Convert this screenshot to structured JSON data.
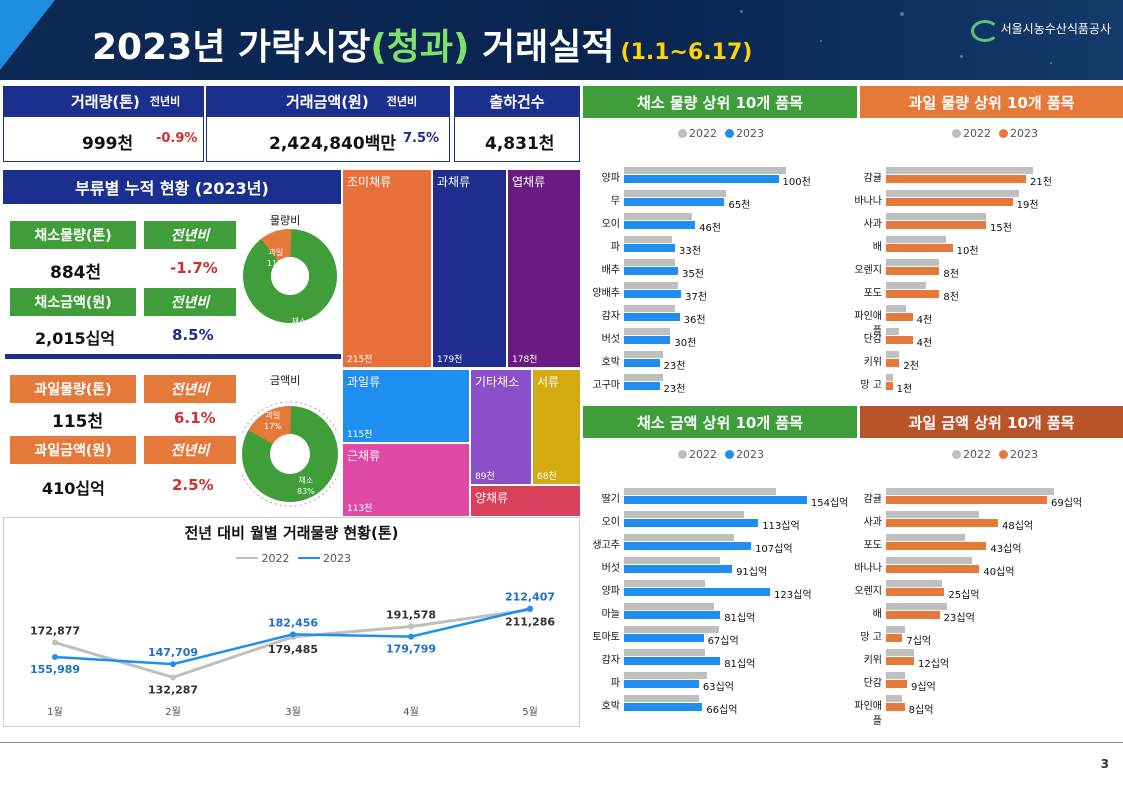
{
  "header": {
    "title_pre": "2023년 가락시장",
    "title_green": "(청과)",
    "title_post": " 거래실적",
    "period": "(1.1~6.17)",
    "org": "서울시농수산식품공사"
  },
  "kpi": {
    "volume_label": "거래량(톤)",
    "yoy_label": "전년비",
    "volume_value": "999천",
    "volume_yoy": "-0.9%",
    "amount_label": "거래금액(원)",
    "amount_value": "2,424,840백만",
    "amount_yoy": "7.5%",
    "shipments_label": "출하건수",
    "shipments_value": "4,831천"
  },
  "category": {
    "title": "부류별 누적 현황 (2023년)",
    "veg_volume_label": "채소물량(톤)",
    "veg_volume": "884천",
    "veg_volume_yoy": "-1.7%",
    "veg_amount_label": "채소금액(원)",
    "veg_amount": "2,015십억",
    "veg_amount_yoy": "8.5%",
    "fruit_volume_label": "과일물량(톤)",
    "fruit_volume": "115천",
    "fruit_volume_yoy": "6.1%",
    "fruit_amount_label": "과일금액(원)",
    "fruit_amount": "410십억",
    "fruit_amount_yoy": "2.5%",
    "yoy_label": "전년비",
    "donut1_title": "물량비",
    "donut2_title": "금액비",
    "fruit": "과일",
    "veg": "채소",
    "donut1_fruit": "11%",
    "donut1_veg": "89%",
    "donut2_fruit": "17%",
    "donut2_veg": "83%"
  },
  "treemap": [
    {
      "label": "조미채류",
      "value": "215천",
      "color": "#e8703a"
    },
    {
      "label": "과채류",
      "value": "179천",
      "color": "#1f2d8f"
    },
    {
      "label": "엽채류",
      "value": "178천",
      "color": "#6b1a82"
    },
    {
      "label": "과일류",
      "value": "115천",
      "color": "#1f8ef1"
    },
    {
      "label": "기타채소",
      "value": "89천",
      "color": "#8b4fc9"
    },
    {
      "label": "서류",
      "value": "68천",
      "color": "#d4aa11"
    },
    {
      "label": "근채류",
      "value": "113천",
      "color": "#e04aa6"
    },
    {
      "label": "양채류",
      "value": "",
      "color": "#d9415a"
    }
  ],
  "line": {
    "title": "전년 대비 월별 거래물량 현황(톤)",
    "legend_2022": "2022",
    "legend_2023": "2023"
  },
  "chart_data": [
    {
      "type": "line",
      "title": "전년 대비 월별 거래물량 현황(톤)",
      "categories": [
        "1월",
        "2월",
        "3월",
        "4월",
        "5월"
      ],
      "series": [
        {
          "name": "2022",
          "values": [
            172877,
            132287,
            179485,
            191578,
            211286
          ],
          "color": "#bfbfbf"
        },
        {
          "name": "2023",
          "values": [
            155989,
            147709,
            182456,
            179799,
            212407
          ],
          "color": "#1f8ef1"
        }
      ],
      "ylim": [
        100000,
        240000
      ]
    },
    {
      "type": "bar",
      "title": "채소 물량 상위 10개 품목",
      "categories": [
        "양파",
        "무",
        "오이",
        "파",
        "배추",
        "양배추",
        "감자",
        "버섯",
        "호박",
        "고구마"
      ],
      "series": [
        {
          "name": "2022",
          "values": [
            105,
            66,
            44,
            31,
            33,
            35,
            33,
            30,
            25,
            25
          ]
        },
        {
          "name": "2023",
          "values": [
            100,
            65,
            46,
            33,
            35,
            37,
            36,
            30,
            23,
            23
          ]
        }
      ],
      "unit": "천"
    },
    {
      "type": "bar",
      "title": "과일 물량 상위 10개 품목",
      "categories": [
        "감귤",
        "바나나",
        "사과",
        "배",
        "오렌지",
        "포도",
        "파인애플",
        "단감",
        "키위",
        "망 고"
      ],
      "series": [
        {
          "name": "2022",
          "values": [
            22,
            20,
            15,
            9,
            8,
            6,
            3,
            2,
            2,
            1
          ]
        },
        {
          "name": "2023",
          "values": [
            21,
            19,
            15,
            10,
            8,
            8,
            4,
            4,
            2,
            1
          ]
        }
      ],
      "unit": "천"
    },
    {
      "type": "bar",
      "title": "채소 금액 상위 10개 품목",
      "categories": [
        "딸기",
        "오이",
        "생고추",
        "버섯",
        "양파",
        "마늘",
        "토마토",
        "감자",
        "파",
        "호박"
      ],
      "series": [
        {
          "name": "2022",
          "values": [
            128,
            101,
            93,
            81,
            68,
            76,
            80,
            68,
            70,
            63
          ]
        },
        {
          "name": "2023",
          "values": [
            154,
            113,
            107,
            91,
            123,
            81,
            67,
            81,
            63,
            66
          ]
        }
      ],
      "unit": "십억"
    },
    {
      "type": "bar",
      "title": "과일 금액 상위 10개 품목",
      "categories": [
        "감귤",
        "사과",
        "포도",
        "바나나",
        "오렌지",
        "배",
        "망 고",
        "키위",
        "단감",
        "파인애플"
      ],
      "series": [
        {
          "name": "2022",
          "values": [
            72,
            40,
            34,
            37,
            24,
            26,
            8,
            12,
            8,
            7
          ]
        },
        {
          "name": "2023",
          "values": [
            69,
            48,
            43,
            40,
            25,
            23,
            7,
            12,
            9,
            8
          ]
        }
      ],
      "unit": "십억"
    }
  ],
  "panels": {
    "veg_vol_title": "채소 물량 상위 10개 품목",
    "fruit_vol_title": "과일 물량 상위 10개 품목",
    "veg_amt_title": "채소 금액 상위 10개 품목",
    "fruit_amt_title": "과일 금액 상위 10개 품목",
    "l2022": "2022",
    "l2023": "2023"
  },
  "page_number": "3"
}
